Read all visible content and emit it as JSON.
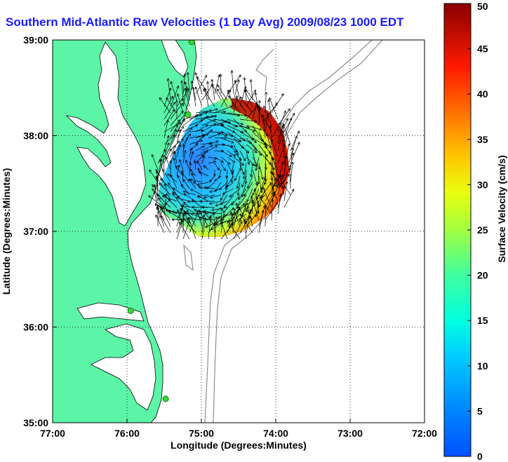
{
  "map": {
    "title": "Southern Mid-Atlantic Raw Velocities (1 Day Avg) 2009/08/23 1000 EDT",
    "xlabel": "Longitude (Degrees:Minutes)",
    "ylabel": "Latitude (Degrees:Minutes)",
    "x_ticks": [
      "77:00",
      "76:00",
      "75:00",
      "74:00",
      "73:00",
      "72:00"
    ],
    "y_ticks": [
      "39:00",
      "38:00",
      "37:00",
      "36:00",
      "35:00"
    ],
    "xlim": [
      -77,
      -72
    ],
    "ylim": [
      35,
      39
    ],
    "grid": true,
    "land_color": "#5cf5a8",
    "coast_color": "#000000",
    "isobath_color": "#8c8c8c",
    "stations": [
      {
        "lon": -75.13,
        "lat": 38.98
      },
      {
        "lon": -75.18,
        "lat": 38.22
      },
      {
        "lon": -75.95,
        "lat": 36.17
      },
      {
        "lon": -75.48,
        "lat": 35.25
      }
    ]
  },
  "colorbar": {
    "label": "Surface Velocity (cm/s)",
    "ticks": [
      "0",
      "5",
      "10",
      "15",
      "20",
      "25",
      "30",
      "35",
      "40",
      "45",
      "50"
    ],
    "min": 0,
    "max": 50,
    "colormap": "jet"
  }
}
